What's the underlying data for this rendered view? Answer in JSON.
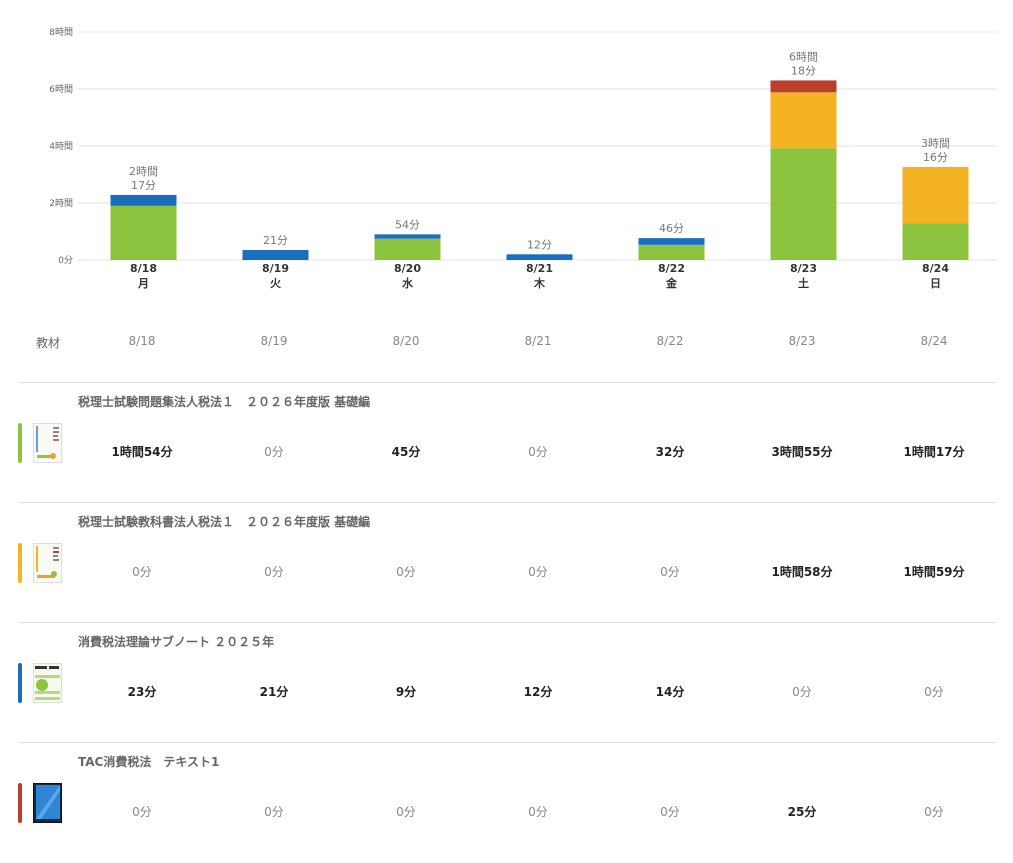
{
  "chart_data": {
    "type": "bar",
    "stacked": true,
    "categories": [
      "8/18",
      "8/19",
      "8/20",
      "8/21",
      "8/22",
      "8/23",
      "8/24"
    ],
    "weekdays": [
      "月",
      "火",
      "水",
      "木",
      "金",
      "土",
      "日"
    ],
    "y_tick_labels": [
      "0分",
      "2時間",
      "4時間",
      "6時間",
      "8時間"
    ],
    "ylim": [
      0,
      480
    ],
    "y_unit": "minutes",
    "grid": true,
    "totals": [
      [
        "2時間",
        "17分"
      ],
      [
        "21分"
      ],
      [
        "54分"
      ],
      [
        "12分"
      ],
      [
        "46分"
      ],
      [
        "6時間",
        "18分"
      ],
      [
        "3時間",
        "16分"
      ]
    ],
    "series": [
      {
        "color": "#8dc43f",
        "values": [
          114,
          0,
          45,
          0,
          32,
          235,
          77
        ]
      },
      {
        "color": "#f3b323",
        "values": [
          0,
          0,
          0,
          0,
          0,
          118,
          119
        ]
      },
      {
        "color": "#1a6ebd",
        "values": [
          23,
          21,
          9,
          12,
          14,
          0,
          0
        ]
      },
      {
        "color": "#bc3f2c",
        "values": [
          0,
          0,
          0,
          0,
          0,
          25,
          0
        ]
      }
    ]
  },
  "table": {
    "header_label": "教材",
    "dates": [
      "8/18",
      "8/19",
      "8/20",
      "8/21",
      "8/22",
      "8/23",
      "8/24"
    ]
  },
  "materials": [
    {
      "title": "税理士試験問題集法人税法１　２０２６年度版 基礎編",
      "color": "#8dc43f",
      "icon": "book-cover-icon",
      "cells": [
        "1時間54分",
        "0分",
        "45分",
        "0分",
        "32分",
        "3時間55分",
        "1時間17分"
      ]
    },
    {
      "title": "税理士試験教科書法人税法１　２０２６年度版 基礎編",
      "color": "#f3b323",
      "icon": "book-cover-icon",
      "cells": [
        "0分",
        "0分",
        "0分",
        "0分",
        "0分",
        "1時間58分",
        "1時間59分"
      ]
    },
    {
      "title": "消費税法理論サブノート ２０２５年",
      "color": "#1a6ebd",
      "icon": "book-cover-icon",
      "cells": [
        "23分",
        "21分",
        "9分",
        "12分",
        "14分",
        "0分",
        "0分"
      ]
    },
    {
      "title": "TAC消費税法　テキスト1",
      "color": "#bc3f2c",
      "icon": "book-cover-icon",
      "cells": [
        "0分",
        "0分",
        "0分",
        "0分",
        "0分",
        "25分",
        "0分"
      ]
    }
  ]
}
